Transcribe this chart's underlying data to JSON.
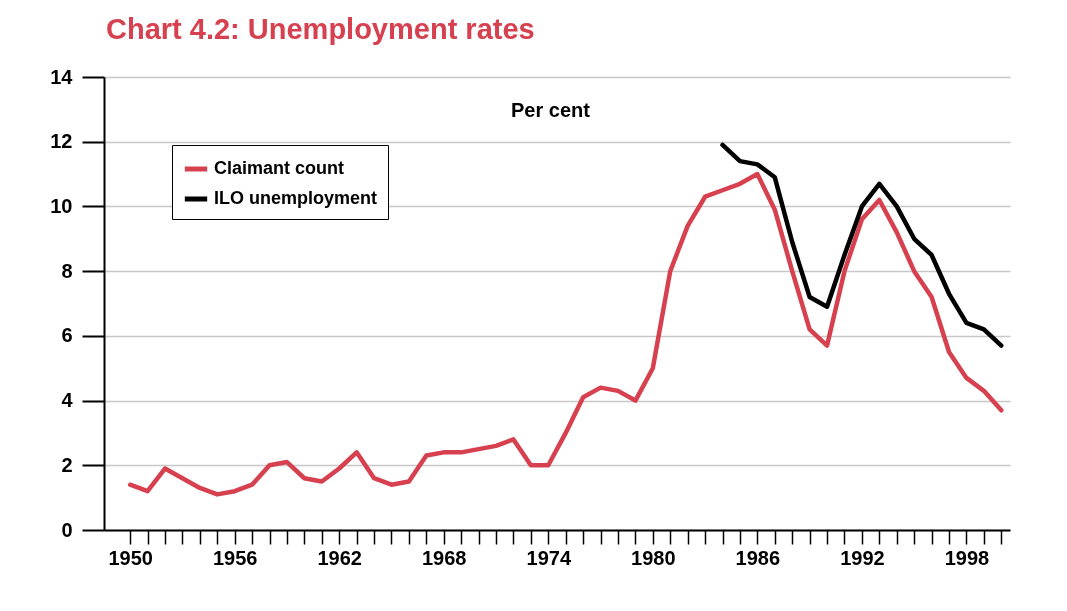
{
  "chart_data": {
    "type": "line",
    "title": "Chart 4.2: Unemployment rates",
    "ylabel": "Per cent",
    "x": [
      1950,
      1951,
      1952,
      1953,
      1954,
      1955,
      1956,
      1957,
      1958,
      1959,
      1960,
      1961,
      1962,
      1963,
      1964,
      1965,
      1966,
      1967,
      1968,
      1969,
      1970,
      1971,
      1972,
      1973,
      1974,
      1975,
      1976,
      1977,
      1978,
      1979,
      1980,
      1981,
      1982,
      1983,
      1984,
      1985,
      1986,
      1987,
      1988,
      1989,
      1990,
      1991,
      1992,
      1993,
      1994,
      1995,
      1996,
      1997,
      1998,
      1999,
      2000
    ],
    "series": [
      {
        "name": "Claimant count",
        "color": "#d7404f",
        "values": [
          1.4,
          1.2,
          1.9,
          1.6,
          1.3,
          1.1,
          1.2,
          1.4,
          2.0,
          2.1,
          1.6,
          1.5,
          1.9,
          2.4,
          1.6,
          1.4,
          1.5,
          2.3,
          2.4,
          2.4,
          2.5,
          2.6,
          2.8,
          2.0,
          2.0,
          3.0,
          4.1,
          4.4,
          4.3,
          4.0,
          5.0,
          8.0,
          9.4,
          10.3,
          10.5,
          10.7,
          11.0,
          9.9,
          8.0,
          6.2,
          5.7,
          8.0,
          9.6,
          10.2,
          9.2,
          8.0,
          7.2,
          5.5,
          4.7,
          4.3,
          3.7
        ]
      },
      {
        "name": "ILO unemployment",
        "color": "#000000",
        "x": [
          1984,
          1985,
          1986,
          1987,
          1988,
          1989,
          1990,
          1991,
          1992,
          1993,
          1994,
          1995,
          1996,
          1997,
          1998,
          1999,
          2000
        ],
        "values": [
          11.9,
          11.4,
          11.3,
          10.9,
          8.9,
          7.2,
          6.9,
          8.5,
          10.0,
          10.7,
          10.0,
          9.0,
          8.5,
          7.3,
          6.4,
          6.2,
          5.7
        ]
      }
    ],
    "xlim": [
      1948.5,
      2000.5
    ],
    "xticks": [
      1950,
      {
        "value": 1951,
        "label": null
      },
      {
        "value": 1952,
        "label": null
      },
      {
        "value": 1953,
        "label": null
      },
      {
        "value": 1954,
        "label": null
      },
      {
        "value": 1955,
        "label": null
      },
      1956,
      {
        "value": 1957,
        "label": null
      },
      {
        "value": 1958,
        "label": null
      },
      {
        "value": 1959,
        "label": null
      },
      {
        "value": 1960,
        "label": null
      },
      {
        "value": 1961,
        "label": null
      },
      1962,
      {
        "value": 1963,
        "label": null
      },
      {
        "value": 1964,
        "label": null
      },
      {
        "value": 1965,
        "label": null
      },
      {
        "value": 1966,
        "label": null
      },
      {
        "value": 1967,
        "label": null
      },
      1968,
      {
        "value": 1969,
        "label": null
      },
      {
        "value": 1970,
        "label": null
      },
      {
        "value": 1971,
        "label": null
      },
      {
        "value": 1972,
        "label": null
      },
      {
        "value": 1973,
        "label": null
      },
      1974,
      {
        "value": 1975,
        "label": null
      },
      {
        "value": 1976,
        "label": null
      },
      {
        "value": 1977,
        "label": null
      },
      {
        "value": 1978,
        "label": null
      },
      {
        "value": 1979,
        "label": null
      },
      1980,
      {
        "value": 1981,
        "label": null
      },
      {
        "value": 1982,
        "label": null
      },
      {
        "value": 1983,
        "label": null
      },
      {
        "value": 1984,
        "label": null
      },
      {
        "value": 1985,
        "label": null
      },
      1986,
      {
        "value": 1987,
        "label": null
      },
      {
        "value": 1988,
        "label": null
      },
      {
        "value": 1989,
        "label": null
      },
      {
        "value": 1990,
        "label": null
      },
      {
        "value": 1991,
        "label": null
      },
      1992,
      {
        "value": 1993,
        "label": null
      },
      {
        "value": 1994,
        "label": null
      },
      {
        "value": 1995,
        "label": null
      },
      {
        "value": 1996,
        "label": null
      },
      {
        "value": 1997,
        "label": null
      },
      1998,
      {
        "value": 1999,
        "label": null
      },
      {
        "value": 2000,
        "label": null
      }
    ],
    "ylim": [
      0,
      14
    ],
    "yticks": [
      0,
      2,
      4,
      6,
      8,
      10,
      12,
      14
    ],
    "grid": "y",
    "legend": "top left",
    "line_style": "solid",
    "marker": "none"
  }
}
